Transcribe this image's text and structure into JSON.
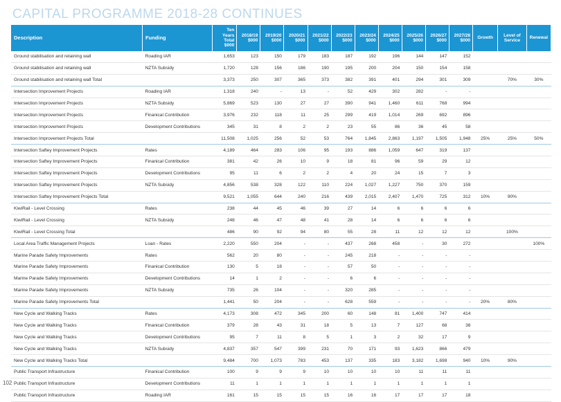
{
  "page_title": "CAPITAL PROGRAMME 2018-28 CONTINUES",
  "headers": {
    "description": "Description",
    "funding": "Funding",
    "ten_year": [
      "Ten Years",
      "Total",
      "$000"
    ],
    "years": [
      [
        "2018/19",
        "$000"
      ],
      [
        "2019/20",
        "$000"
      ],
      [
        "2020/21",
        "$000"
      ],
      [
        "2021/22",
        "$000"
      ],
      [
        "2022/23",
        "$000"
      ],
      [
        "2023/24",
        "$000"
      ],
      [
        "2024/25",
        "$000"
      ],
      [
        "2025/26",
        "$000"
      ],
      [
        "2026/27",
        "$000"
      ],
      [
        "2027/28",
        "$000"
      ]
    ],
    "growth": "Growth",
    "level_of_service": [
      "Level of",
      "Service"
    ],
    "renewal": "Renewal"
  },
  "rows": [
    {
      "description": "Ground stabilisation and retaining wall",
      "funding": "Roading IAR",
      "total": "1,653",
      "years": [
        "123",
        "150",
        "179",
        "183",
        "187",
        "192",
        "196",
        "144",
        "147",
        "152"
      ],
      "growth": "",
      "los": "",
      "renewal": "",
      "is_total": false
    },
    {
      "description": "Ground stabilisation and retaining wall",
      "funding": "NZTA Subsidy",
      "total": "1,720",
      "years": [
        "128",
        "156",
        "186",
        "190",
        "195",
        "200",
        "204",
        "150",
        "154",
        "158"
      ],
      "growth": "",
      "los": "",
      "renewal": "",
      "is_total": false
    },
    {
      "description": "Ground stabilisation and retaining wall Total",
      "funding": "",
      "total": "3,373",
      "years": [
        "250",
        "307",
        "365",
        "373",
        "382",
        "391",
        "401",
        "294",
        "301",
        "309"
      ],
      "growth": "",
      "los": "70%",
      "renewal": "30%",
      "is_total": true
    },
    {
      "description": "Intersection Improvement Projects",
      "funding": "Roading IAR",
      "total": "1,318",
      "years": [
        "240",
        "-",
        "13",
        "-",
        "52",
        "429",
        "302",
        "282",
        "-",
        "-"
      ],
      "growth": "",
      "los": "",
      "renewal": "",
      "is_total": false
    },
    {
      "description": "Intersection Improvement Projects",
      "funding": "NZTA Subsidy",
      "total": "5,869",
      "years": [
        "523",
        "130",
        "27",
        "27",
        "390",
        "941",
        "1,460",
        "611",
        "768",
        "994"
      ],
      "growth": "",
      "los": "",
      "renewal": "",
      "is_total": false
    },
    {
      "description": "Intersection Improvement Projects",
      "funding": "Finanical Contribution",
      "total": "3,976",
      "years": [
        "232",
        "118",
        "11",
        "25",
        "299",
        "419",
        "1,014",
        "269",
        "692",
        "896"
      ],
      "growth": "",
      "los": "",
      "renewal": "",
      "is_total": false
    },
    {
      "description": "Intersection Improvement Projects",
      "funding": "Development Contributions",
      "total": "345",
      "years": [
        "31",
        "8",
        "2",
        "2",
        "23",
        "55",
        "86",
        "36",
        "45",
        "58"
      ],
      "growth": "",
      "los": "",
      "renewal": "",
      "is_total": false
    },
    {
      "description": "Intersection Improvement Projects Total",
      "funding": "",
      "total": "11,508",
      "years": [
        "1,025",
        "256",
        "52",
        "53",
        "764",
        "1,845",
        "2,863",
        "1,197",
        "1,505",
        "1,948"
      ],
      "growth": "25%",
      "los": "25%",
      "renewal": "50%",
      "is_total": true
    },
    {
      "description": "Intersection Saftey Improvement Projects",
      "funding": "Rates",
      "total": "4,189",
      "years": [
        "464",
        "283",
        "106",
        "95",
        "193",
        "886",
        "1,059",
        "647",
        "319",
        "137"
      ],
      "growth": "",
      "los": "",
      "renewal": "",
      "is_total": false
    },
    {
      "description": "Intersection Saftey Improvement Projects",
      "funding": "Finanical Contribution",
      "total": "381",
      "years": [
        "42",
        "26",
        "10",
        "9",
        "18",
        "81",
        "96",
        "59",
        "29",
        "12"
      ],
      "growth": "",
      "los": "",
      "renewal": "",
      "is_total": false
    },
    {
      "description": "Intersection Saftey Improvement Projects",
      "funding": "Development Contributions",
      "total": "95",
      "years": [
        "11",
        "6",
        "2",
        "2",
        "4",
        "20",
        "24",
        "15",
        "7",
        "3"
      ],
      "growth": "",
      "los": "",
      "renewal": "",
      "is_total": false
    },
    {
      "description": "Intersection Saftey Improvement Projects",
      "funding": "NZTA Subsidy",
      "total": "4,856",
      "years": [
        "538",
        "328",
        "122",
        "110",
        "224",
        "1,027",
        "1,227",
        "750",
        "370",
        "159"
      ],
      "growth": "",
      "los": "",
      "renewal": "",
      "is_total": false
    },
    {
      "description": "Intersection Saftey Improvement Projects Total",
      "funding": "",
      "total": "9,521",
      "years": [
        "1,055",
        "644",
        "240",
        "216",
        "439",
        "2,015",
        "2,407",
        "1,470",
        "725",
        "312"
      ],
      "growth": "10%",
      "los": "90%",
      "renewal": "",
      "is_total": true
    },
    {
      "description": "KiwiRail - Level Crossing",
      "funding": "Rates",
      "total": "238",
      "years": [
        "44",
        "45",
        "46",
        "39",
        "27",
        "14",
        "6",
        "6",
        "6",
        "6"
      ],
      "growth": "",
      "los": "",
      "renewal": "",
      "is_total": false
    },
    {
      "description": "KiwiRail - Level Crossing",
      "funding": "NZTA Subsidy",
      "total": "248",
      "years": [
        "46",
        "47",
        "48",
        "41",
        "28",
        "14",
        "6",
        "6",
        "6",
        "6"
      ],
      "growth": "",
      "los": "",
      "renewal": "",
      "is_total": false
    },
    {
      "description": "KiwiRail - Level Crossing Total",
      "funding": "",
      "total": "486",
      "years": [
        "90",
        "92",
        "94",
        "80",
        "55",
        "28",
        "11",
        "12",
        "12",
        "12"
      ],
      "growth": "",
      "los": "100%",
      "renewal": "",
      "is_total": true
    },
    {
      "description": "Local Area Traffic Management Projects",
      "funding": "Loan - Rates",
      "total": "2,220",
      "years": [
        "550",
        "204",
        "-",
        "-",
        "437",
        "268",
        "458",
        "-",
        "30",
        "272"
      ],
      "growth": "",
      "los": "",
      "renewal": "100%",
      "is_total": false
    },
    {
      "description": "Marine Parade Safety Improvements",
      "funding": "Rates",
      "total": "562",
      "years": [
        "20",
        "80",
        "-",
        "-",
        "245",
        "218",
        "-",
        "-",
        "-",
        "-"
      ],
      "growth": "",
      "los": "",
      "renewal": "",
      "is_total": false
    },
    {
      "description": "Marine Parade Safety Improvements",
      "funding": "Finanical Contribution",
      "total": "130",
      "years": [
        "5",
        "18",
        "-",
        "-",
        "57",
        "50",
        "-",
        "-",
        "-",
        "-"
      ],
      "growth": "",
      "los": "",
      "renewal": "",
      "is_total": false
    },
    {
      "description": "Marine Parade Safety Improvements",
      "funding": "Development Contributions",
      "total": "14",
      "years": [
        "1",
        "2",
        "-",
        "-",
        "6",
        "6",
        "-",
        "-",
        "-",
        "-"
      ],
      "growth": "",
      "los": "",
      "renewal": "",
      "is_total": false
    },
    {
      "description": "Marine Parade Safety Improvements",
      "funding": "NZTA Subsidy",
      "total": "735",
      "years": [
        "26",
        "104",
        "-",
        "-",
        "320",
        "285",
        "-",
        "-",
        "-",
        "-"
      ],
      "growth": "",
      "los": "",
      "renewal": "",
      "is_total": false
    },
    {
      "description": "Marine Parade Safety Improvements Total",
      "funding": "",
      "total": "1,441",
      "years": [
        "50",
        "204",
        "-",
        "-",
        "628",
        "559",
        "-",
        "-",
        "-",
        "-"
      ],
      "growth": "20%",
      "los": "80%",
      "renewal": "",
      "is_total": true
    },
    {
      "description": "New Cycle and Walking Tracks",
      "funding": "Rates",
      "total": "4,173",
      "years": [
        "308",
        "472",
        "345",
        "200",
        "60",
        "148",
        "81",
        "1,400",
        "747",
        "414"
      ],
      "growth": "",
      "los": "",
      "renewal": "",
      "is_total": false
    },
    {
      "description": "New Cycle and Walking Tracks",
      "funding": "Finanical Contribution",
      "total": "379",
      "years": [
        "28",
        "43",
        "31",
        "18",
        "5",
        "13",
        "7",
        "127",
        "68",
        "38"
      ],
      "growth": "",
      "los": "",
      "renewal": "",
      "is_total": false
    },
    {
      "description": "New Cycle and Walking Tracks",
      "funding": "Development Contributions",
      "total": "95",
      "years": [
        "7",
        "11",
        "8",
        "5",
        "1",
        "3",
        "2",
        "32",
        "17",
        "9"
      ],
      "growth": "",
      "los": "",
      "renewal": "",
      "is_total": false
    },
    {
      "description": "New Cycle and Walking Tracks",
      "funding": "NZTA Subsidy",
      "total": "4,837",
      "years": [
        "357",
        "547",
        "399",
        "231",
        "70",
        "171",
        "93",
        "1,623",
        "866",
        "479"
      ],
      "growth": "",
      "los": "",
      "renewal": "",
      "is_total": false
    },
    {
      "description": "New Cycle and Walking Tracks Total",
      "funding": "",
      "total": "9,484",
      "years": [
        "700",
        "1,073",
        "783",
        "453",
        "137",
        "335",
        "183",
        "3,182",
        "1,698",
        "940"
      ],
      "growth": "10%",
      "los": "90%",
      "renewal": "",
      "is_total": true
    },
    {
      "description": "Public Transport Infrastructure",
      "funding": "Finanical Contribution",
      "total": "100",
      "years": [
        "9",
        "9",
        "9",
        "10",
        "10",
        "10",
        "10",
        "11",
        "11",
        "11"
      ],
      "growth": "",
      "los": "",
      "renewal": "",
      "is_total": false
    },
    {
      "description": "Public Transport Infrastructure",
      "funding": "Development Contributions",
      "total": "11",
      "years": [
        "1",
        "1",
        "1",
        "1",
        "1",
        "1",
        "1",
        "1",
        "1",
        "1"
      ],
      "growth": "",
      "los": "",
      "renewal": "",
      "is_total": false
    },
    {
      "description": "Public Transport Infrastructure",
      "funding": "Roading IAR",
      "total": "161",
      "years": [
        "15",
        "15",
        "15",
        "15",
        "16",
        "16",
        "17",
        "17",
        "17",
        "18"
      ],
      "growth": "",
      "los": "",
      "renewal": "",
      "is_total": false
    }
  ],
  "page_number": "102",
  "colors": {
    "header_bg": "#1c95d3",
    "title": "#bcd8ec",
    "total_rule": "#9fc9e6"
  }
}
